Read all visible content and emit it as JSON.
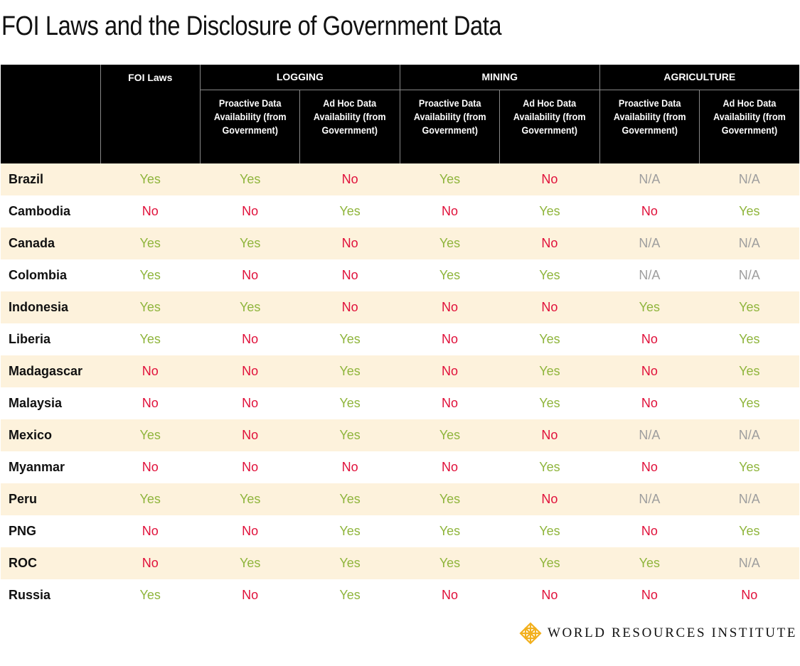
{
  "title": "FOI Laws and the Disclosure of Government Data",
  "chart_data": {
    "type": "table",
    "title": "FOI Laws and the Disclosure of Government Data",
    "group_headers": [
      "FOI Laws",
      "LOGGING",
      "MINING",
      "AGRICULTURE"
    ],
    "sub_headers": {
      "proactive": "Proactive Data Availability (from Government)",
      "adhoc": "Ad Hoc Data Availability (from Government)"
    },
    "columns": [
      "FOI Laws",
      "Logging Proactive",
      "Logging Ad Hoc",
      "Mining Proactive",
      "Mining Ad Hoc",
      "Agriculture Proactive",
      "Agriculture Ad Hoc"
    ],
    "rows": [
      {
        "country": "Brazil",
        "values": [
          "Yes",
          "Yes",
          "No",
          "Yes",
          "No",
          "N/A",
          "N/A"
        ]
      },
      {
        "country": "Cambodia",
        "values": [
          "No",
          "No",
          "Yes",
          "No",
          "Yes",
          "No",
          "Yes"
        ]
      },
      {
        "country": "Canada",
        "values": [
          "Yes",
          "Yes",
          "No",
          "Yes",
          "No",
          "N/A",
          "N/A"
        ]
      },
      {
        "country": "Colombia",
        "values": [
          "Yes",
          "No",
          "No",
          "Yes",
          "Yes",
          "N/A",
          "N/A"
        ]
      },
      {
        "country": "Indonesia",
        "values": [
          "Yes",
          "Yes",
          "No",
          "No",
          "No",
          "Yes",
          "Yes"
        ]
      },
      {
        "country": "Liberia",
        "values": [
          "Yes",
          "No",
          "Yes",
          "No",
          "Yes",
          "No",
          "Yes"
        ]
      },
      {
        "country": "Madagascar",
        "values": [
          "No",
          "No",
          "Yes",
          "No",
          "Yes",
          "No",
          "Yes"
        ]
      },
      {
        "country": "Malaysia",
        "values": [
          "No",
          "No",
          "Yes",
          "No",
          "Yes",
          "No",
          "Yes"
        ]
      },
      {
        "country": "Mexico",
        "values": [
          "Yes",
          "No",
          "Yes",
          "Yes",
          "No",
          "N/A",
          "N/A"
        ]
      },
      {
        "country": "Myanmar",
        "values": [
          "No",
          "No",
          "No",
          "No",
          "Yes",
          "No",
          "Yes"
        ]
      },
      {
        "country": "Peru",
        "values": [
          "Yes",
          "Yes",
          "Yes",
          "Yes",
          "No",
          "N/A",
          "N/A"
        ]
      },
      {
        "country": "PNG",
        "values": [
          "No",
          "No",
          "Yes",
          "Yes",
          "Yes",
          "No",
          "Yes"
        ]
      },
      {
        "country": "ROC",
        "values": [
          "No",
          "Yes",
          "Yes",
          "Yes",
          "Yes",
          "Yes",
          "N/A"
        ]
      },
      {
        "country": "Russia",
        "values": [
          "Yes",
          "No",
          "Yes",
          "No",
          "No",
          "No",
          "No"
        ]
      }
    ]
  },
  "colors": {
    "yes": "#8fb53c",
    "no": "#e0103a",
    "na": "#9e9e9e",
    "stripe": "#fdf2dc",
    "header_bg": "#000000",
    "logo_gold": "#f2b01e"
  },
  "footer": {
    "logo_icon": "wri-lattice-icon",
    "logo_text": "WORLD RESOURCES INSTITUTE"
  }
}
